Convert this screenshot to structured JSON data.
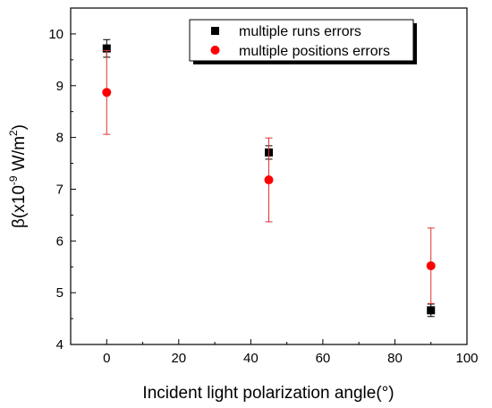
{
  "chart_data": {
    "type": "scatter",
    "xlabel": "Incident light polarization angle(°)",
    "ylabel": {
      "prefix": "β(x10",
      "exp": "-9",
      "mid": " W/m",
      "exp2": "2",
      "suffix": ")"
    },
    "xlim": [
      -10,
      100
    ],
    "ylim": [
      4,
      10.5
    ],
    "xticks": [
      0,
      20,
      40,
      60,
      80,
      100
    ],
    "yticks": [
      4,
      5,
      6,
      7,
      8,
      9,
      10
    ],
    "grid": false,
    "legend_position": "top-right",
    "series": [
      {
        "name": "multiple runs errors",
        "marker": "square",
        "color": "#000000",
        "errorbar_color": "#000000",
        "x": [
          0,
          45,
          90
        ],
        "y": [
          9.72,
          7.71,
          4.66
        ],
        "error": [
          0.17,
          0.13,
          0.12
        ]
      },
      {
        "name": "multiple positions errors",
        "marker": "circle",
        "color": "#ff0000",
        "errorbar_color": "#e03030",
        "x": [
          0,
          45,
          90
        ],
        "y": [
          8.87,
          7.18,
          5.52
        ],
        "error": [
          0.81,
          0.81,
          0.73
        ]
      }
    ]
  }
}
